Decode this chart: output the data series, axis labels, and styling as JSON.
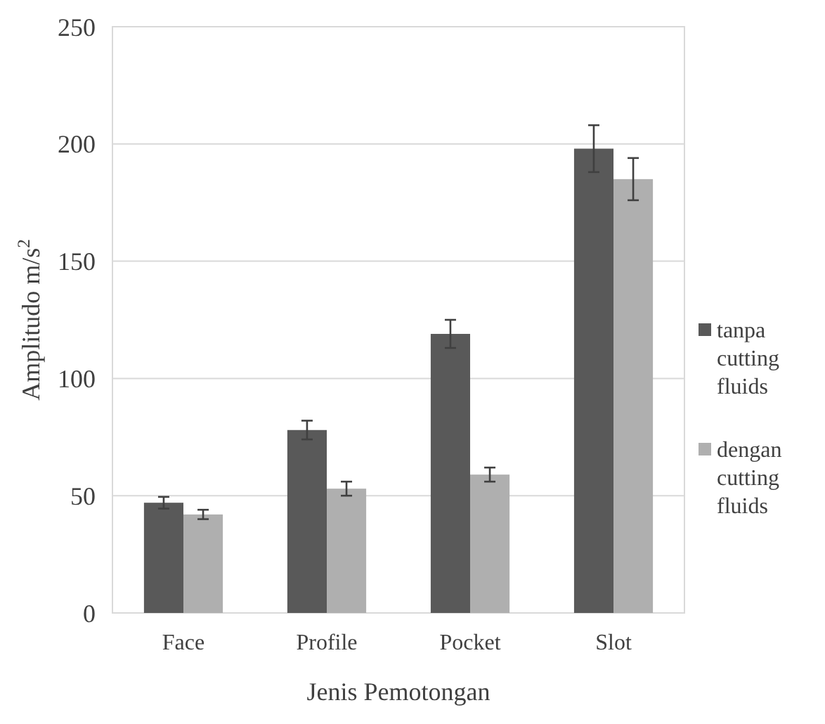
{
  "chart_data": {
    "type": "bar",
    "xlabel": "Jenis Pemotongan",
    "ylabel": "Amplitudo m/s$^{2}$",
    "categories": [
      "Face",
      "Profile",
      "Pocket",
      "Slot"
    ],
    "series": [
      {
        "name": "tanpa cutting fluids",
        "color": "#595959",
        "values": [
          47,
          78,
          119,
          198
        ],
        "errors": [
          2.5,
          4,
          6,
          10
        ]
      },
      {
        "name": "dengan cutting fluids",
        "color": "#afafaf",
        "values": [
          42,
          53,
          59,
          185
        ],
        "errors": [
          2,
          3,
          3,
          9
        ]
      }
    ],
    "ylim": [
      0,
      250
    ],
    "yticks": [
      0,
      50,
      100,
      150,
      200,
      250
    ],
    "grid": "y",
    "legend": "right"
  }
}
